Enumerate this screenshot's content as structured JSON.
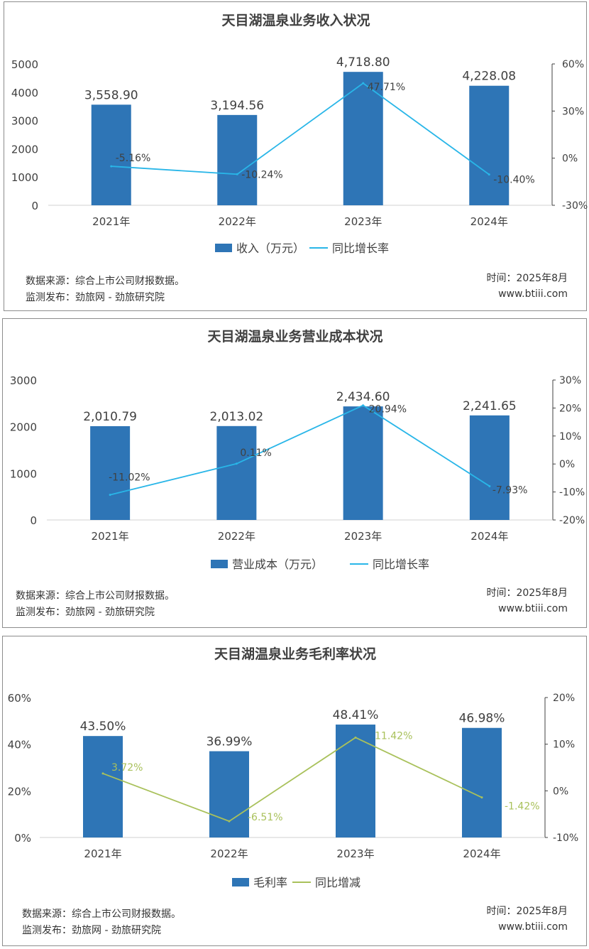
{
  "colors": {
    "bar": "#2e75b6",
    "line_blue": "#29b6e8",
    "line_green": "#a9c15b",
    "text_dark": "#404040"
  },
  "chart_data": [
    {
      "type": "bar",
      "title": "天目湖温泉业务收入状况",
      "categories": [
        "2021年",
        "2022年",
        "2023年",
        "2024年"
      ],
      "series": [
        {
          "name": "收入（万元）",
          "kind": "bar",
          "axis": "left",
          "values": [
            3558.9,
            3194.56,
            4718.8,
            4228.08
          ],
          "labels": [
            "3,558.90",
            "3,194.56",
            "4,718.80",
            "4,228.08"
          ]
        },
        {
          "name": "同比增长率",
          "kind": "line",
          "axis": "right",
          "color": "#29b6e8",
          "values": [
            -5.16,
            -10.24,
            47.71,
            -10.4
          ],
          "labels": [
            "-5.16%",
            "-10.24%",
            "47.71%",
            "-10.40%"
          ]
        }
      ],
      "left_axis": {
        "min": 0,
        "max": 5000,
        "ticks": [
          0,
          1000,
          2000,
          3000,
          4000,
          5000
        ],
        "tick_labels": [
          "0",
          "1000",
          "2000",
          "3000",
          "4000",
          "5000"
        ]
      },
      "right_axis": {
        "min": -30,
        "max": 60,
        "ticks": [
          -30,
          0,
          30,
          60
        ],
        "tick_labels": [
          "-30%",
          "0%",
          "30%",
          "60%"
        ]
      },
      "source": "数据来源：综合上市公司财报数据。",
      "publisher": "监测发布：劲旅网 - 劲旅研究院",
      "date": "时间：2025年8月",
      "site": "www.btiii.com"
    },
    {
      "type": "bar",
      "title": "天目湖温泉业务营业成本状况",
      "categories": [
        "2021年",
        "2022年",
        "2023年",
        "2024年"
      ],
      "series": [
        {
          "name": "营业成本（万元）",
          "kind": "bar",
          "axis": "left",
          "values": [
            2010.79,
            2013.02,
            2434.6,
            2241.65
          ],
          "labels": [
            "2,010.79",
            "2,013.02",
            "2,434.60",
            "2,241.65"
          ]
        },
        {
          "name": "同比增长率",
          "kind": "line",
          "axis": "right",
          "color": "#29b6e8",
          "values": [
            -11.02,
            0.11,
            20.94,
            -7.93
          ],
          "labels": [
            "-11.02%",
            "0.11%",
            "20.94%",
            "-7.93%"
          ]
        }
      ],
      "left_axis": {
        "min": 0,
        "max": 3000,
        "ticks": [
          0,
          1000,
          2000,
          3000
        ],
        "tick_labels": [
          "0",
          "1000",
          "2000",
          "3000"
        ]
      },
      "right_axis": {
        "min": -20,
        "max": 30,
        "ticks": [
          -20,
          -10,
          0,
          10,
          20,
          30
        ],
        "tick_labels": [
          "-20%",
          "-10%",
          "0%",
          "10%",
          "20%",
          "30%"
        ]
      },
      "source": "数据来源：综合上市公司财报数据。",
      "publisher": "监测发布：劲旅网 - 劲旅研究院",
      "date": "时间：2025年8月",
      "site": "www.btiii.com"
    },
    {
      "type": "bar",
      "title": "天目湖温泉业务毛利率状况",
      "categories": [
        "2021年",
        "2022年",
        "2023年",
        "2024年"
      ],
      "series": [
        {
          "name": "毛利率",
          "kind": "bar",
          "axis": "left",
          "values": [
            43.5,
            36.99,
            48.41,
            46.98
          ],
          "labels": [
            "43.50%",
            "36.99%",
            "48.41%",
            "46.98%"
          ]
        },
        {
          "name": "同比增减",
          "kind": "line",
          "axis": "right",
          "color": "#a9c15b",
          "values": [
            3.72,
            -6.51,
            11.42,
            -1.42
          ],
          "labels": [
            "3.72%",
            "-6.51%",
            "11.42%",
            "-1.42%"
          ]
        }
      ],
      "left_axis": {
        "min": 0,
        "max": 60,
        "ticks": [
          0,
          20,
          40,
          60
        ],
        "tick_labels": [
          "0%",
          "20%",
          "40%",
          "60%"
        ]
      },
      "right_axis": {
        "min": -10,
        "max": 20,
        "ticks": [
          -10,
          0,
          10,
          20
        ],
        "tick_labels": [
          "-10%",
          "0%",
          "10%",
          "20%"
        ]
      },
      "source": "数据来源：综合上市公司财报数据。",
      "publisher": "监测发布：劲旅网 - 劲旅研究院",
      "date": "时间：2025年8月",
      "site": "www.btiii.com"
    }
  ]
}
